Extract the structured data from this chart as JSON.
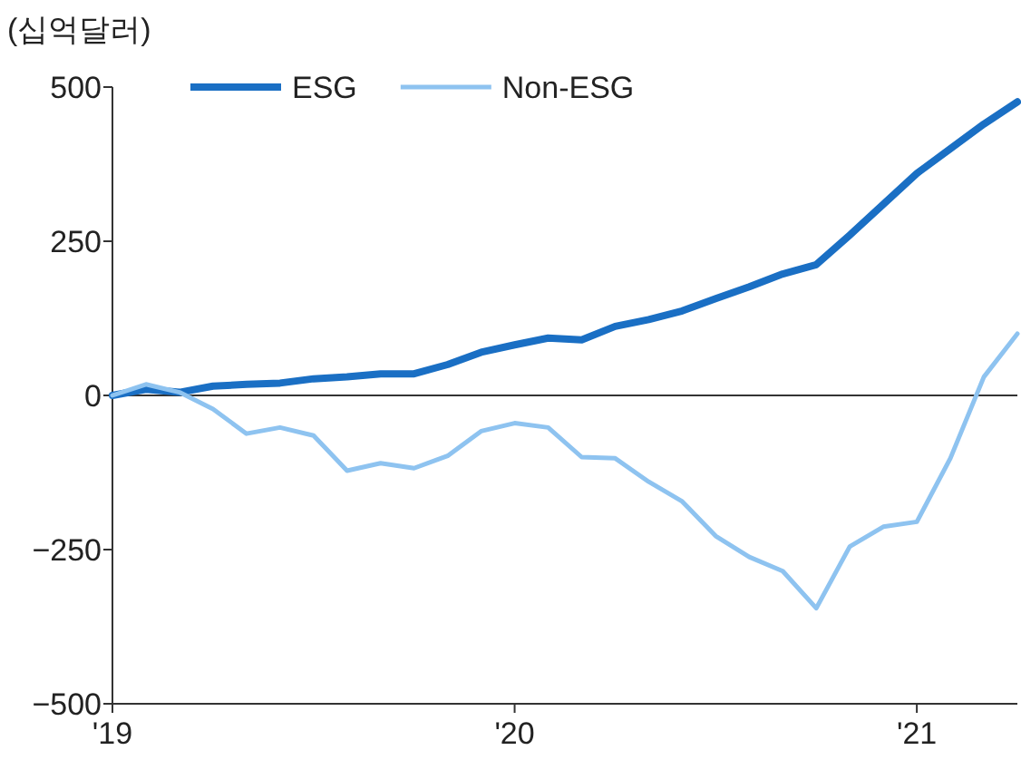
{
  "chart_data": {
    "type": "line",
    "ylabel": "(십억달러)",
    "x": [
      "2019-01",
      "2019-02",
      "2019-03",
      "2019-04",
      "2019-05",
      "2019-06",
      "2019-07",
      "2019-08",
      "2019-09",
      "2019-10",
      "2019-11",
      "2019-12",
      "2020-01",
      "2020-02",
      "2020-03",
      "2020-04",
      "2020-05",
      "2020-06",
      "2020-07",
      "2020-08",
      "2020-09",
      "2020-10",
      "2020-11",
      "2020-12",
      "2021-01",
      "2021-02",
      "2021-03",
      "2021-04"
    ],
    "series": [
      {
        "name": "ESG",
        "color": "#1a6fc4",
        "values": [
          0,
          10,
          5,
          15,
          18,
          20,
          27,
          30,
          35,
          35,
          50,
          70,
          82,
          93,
          90,
          112,
          123,
          137,
          157,
          176,
          197,
          212,
          260,
          310,
          360,
          400,
          440,
          476
        ]
      },
      {
        "name": "Non-ESG",
        "color": "#8ec3f0",
        "values": [
          0,
          18,
          5,
          -22,
          -62,
          -52,
          -65,
          -122,
          -110,
          -118,
          -98,
          -58,
          -45,
          -52,
          -100,
          -102,
          -140,
          -172,
          -228,
          -262,
          -285,
          -345,
          -245,
          -213,
          -205,
          -102,
          30,
          100
        ]
      }
    ],
    "xlim": [
      "2019-01",
      "2021-04"
    ],
    "xticks": [
      {
        "value": "2019-01",
        "label": "'19"
      },
      {
        "value": "2020-01",
        "label": "'20"
      },
      {
        "value": "2021-01",
        "label": "'21"
      }
    ],
    "ylim": [
      -500,
      500
    ],
    "yticks": [
      -500,
      -250,
      0,
      250,
      500
    ],
    "legend": "top",
    "ref_lines": [
      {
        "axis": "y",
        "value": 0,
        "color": "#333333"
      }
    ],
    "marker": "none",
    "line_style": "solid"
  }
}
